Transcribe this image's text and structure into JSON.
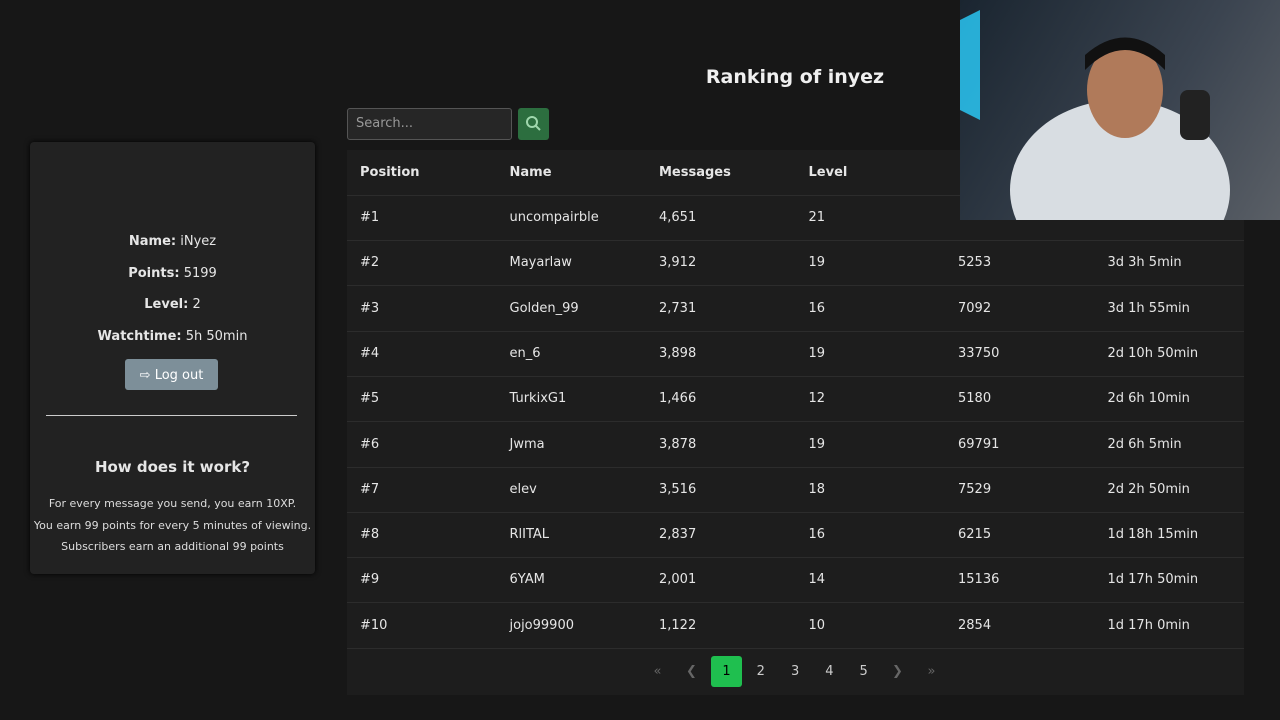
{
  "title": "Ranking of inyez",
  "search": {
    "placeholder": "Search..."
  },
  "profile": {
    "fields": [
      {
        "label": "Name:",
        "value": "iNyez"
      },
      {
        "label": "Points:",
        "value": "5199"
      },
      {
        "label": "Level:",
        "value": "2"
      },
      {
        "label": "Watchtime:",
        "value": "5h 50min"
      }
    ],
    "logout": "Log out"
  },
  "info": {
    "heading": "How does it work?",
    "lines": [
      "For every message you send, you earn 10XP.",
      "You earn 99 points for every 5 minutes of viewing.",
      "Subscribers earn an additional 99 points"
    ]
  },
  "table": {
    "headers": [
      "Position",
      "Name",
      "Messages",
      "Level",
      null,
      null
    ],
    "rows": [
      [
        "#1",
        "uncompairble",
        "4,651",
        "21",
        null,
        null
      ],
      [
        "#2",
        "Mayarlaw",
        "3,912",
        "19",
        "5253",
        "3d 3h 5min"
      ],
      [
        "#3",
        "Golden_99",
        "2,731",
        "16",
        "7092",
        "3d 1h 55min"
      ],
      [
        "#4",
        "en_6",
        "3,898",
        "19",
        "33750",
        "2d 10h 50min"
      ],
      [
        "#5",
        "TurkixG1",
        "1,466",
        "12",
        "5180",
        "2d 6h 10min"
      ],
      [
        "#6",
        "Jwma",
        "3,878",
        "19",
        "69791",
        "2d 6h 5min"
      ],
      [
        "#7",
        "elev",
        "3,516",
        "18",
        "7529",
        "2d 2h 50min"
      ],
      [
        "#8",
        "RlITAL",
        "2,837",
        "16",
        "6215",
        "1d 18h 15min"
      ],
      [
        "#9",
        "6YAM",
        "2,001",
        "14",
        "15136",
        "1d 17h 50min"
      ],
      [
        "#10",
        "jojo99900",
        "1,122",
        "10",
        "2854",
        "1d 17h 0min"
      ]
    ]
  },
  "pagination": {
    "pages": [
      "1",
      "2",
      "3",
      "4",
      "5"
    ],
    "active": 0
  }
}
